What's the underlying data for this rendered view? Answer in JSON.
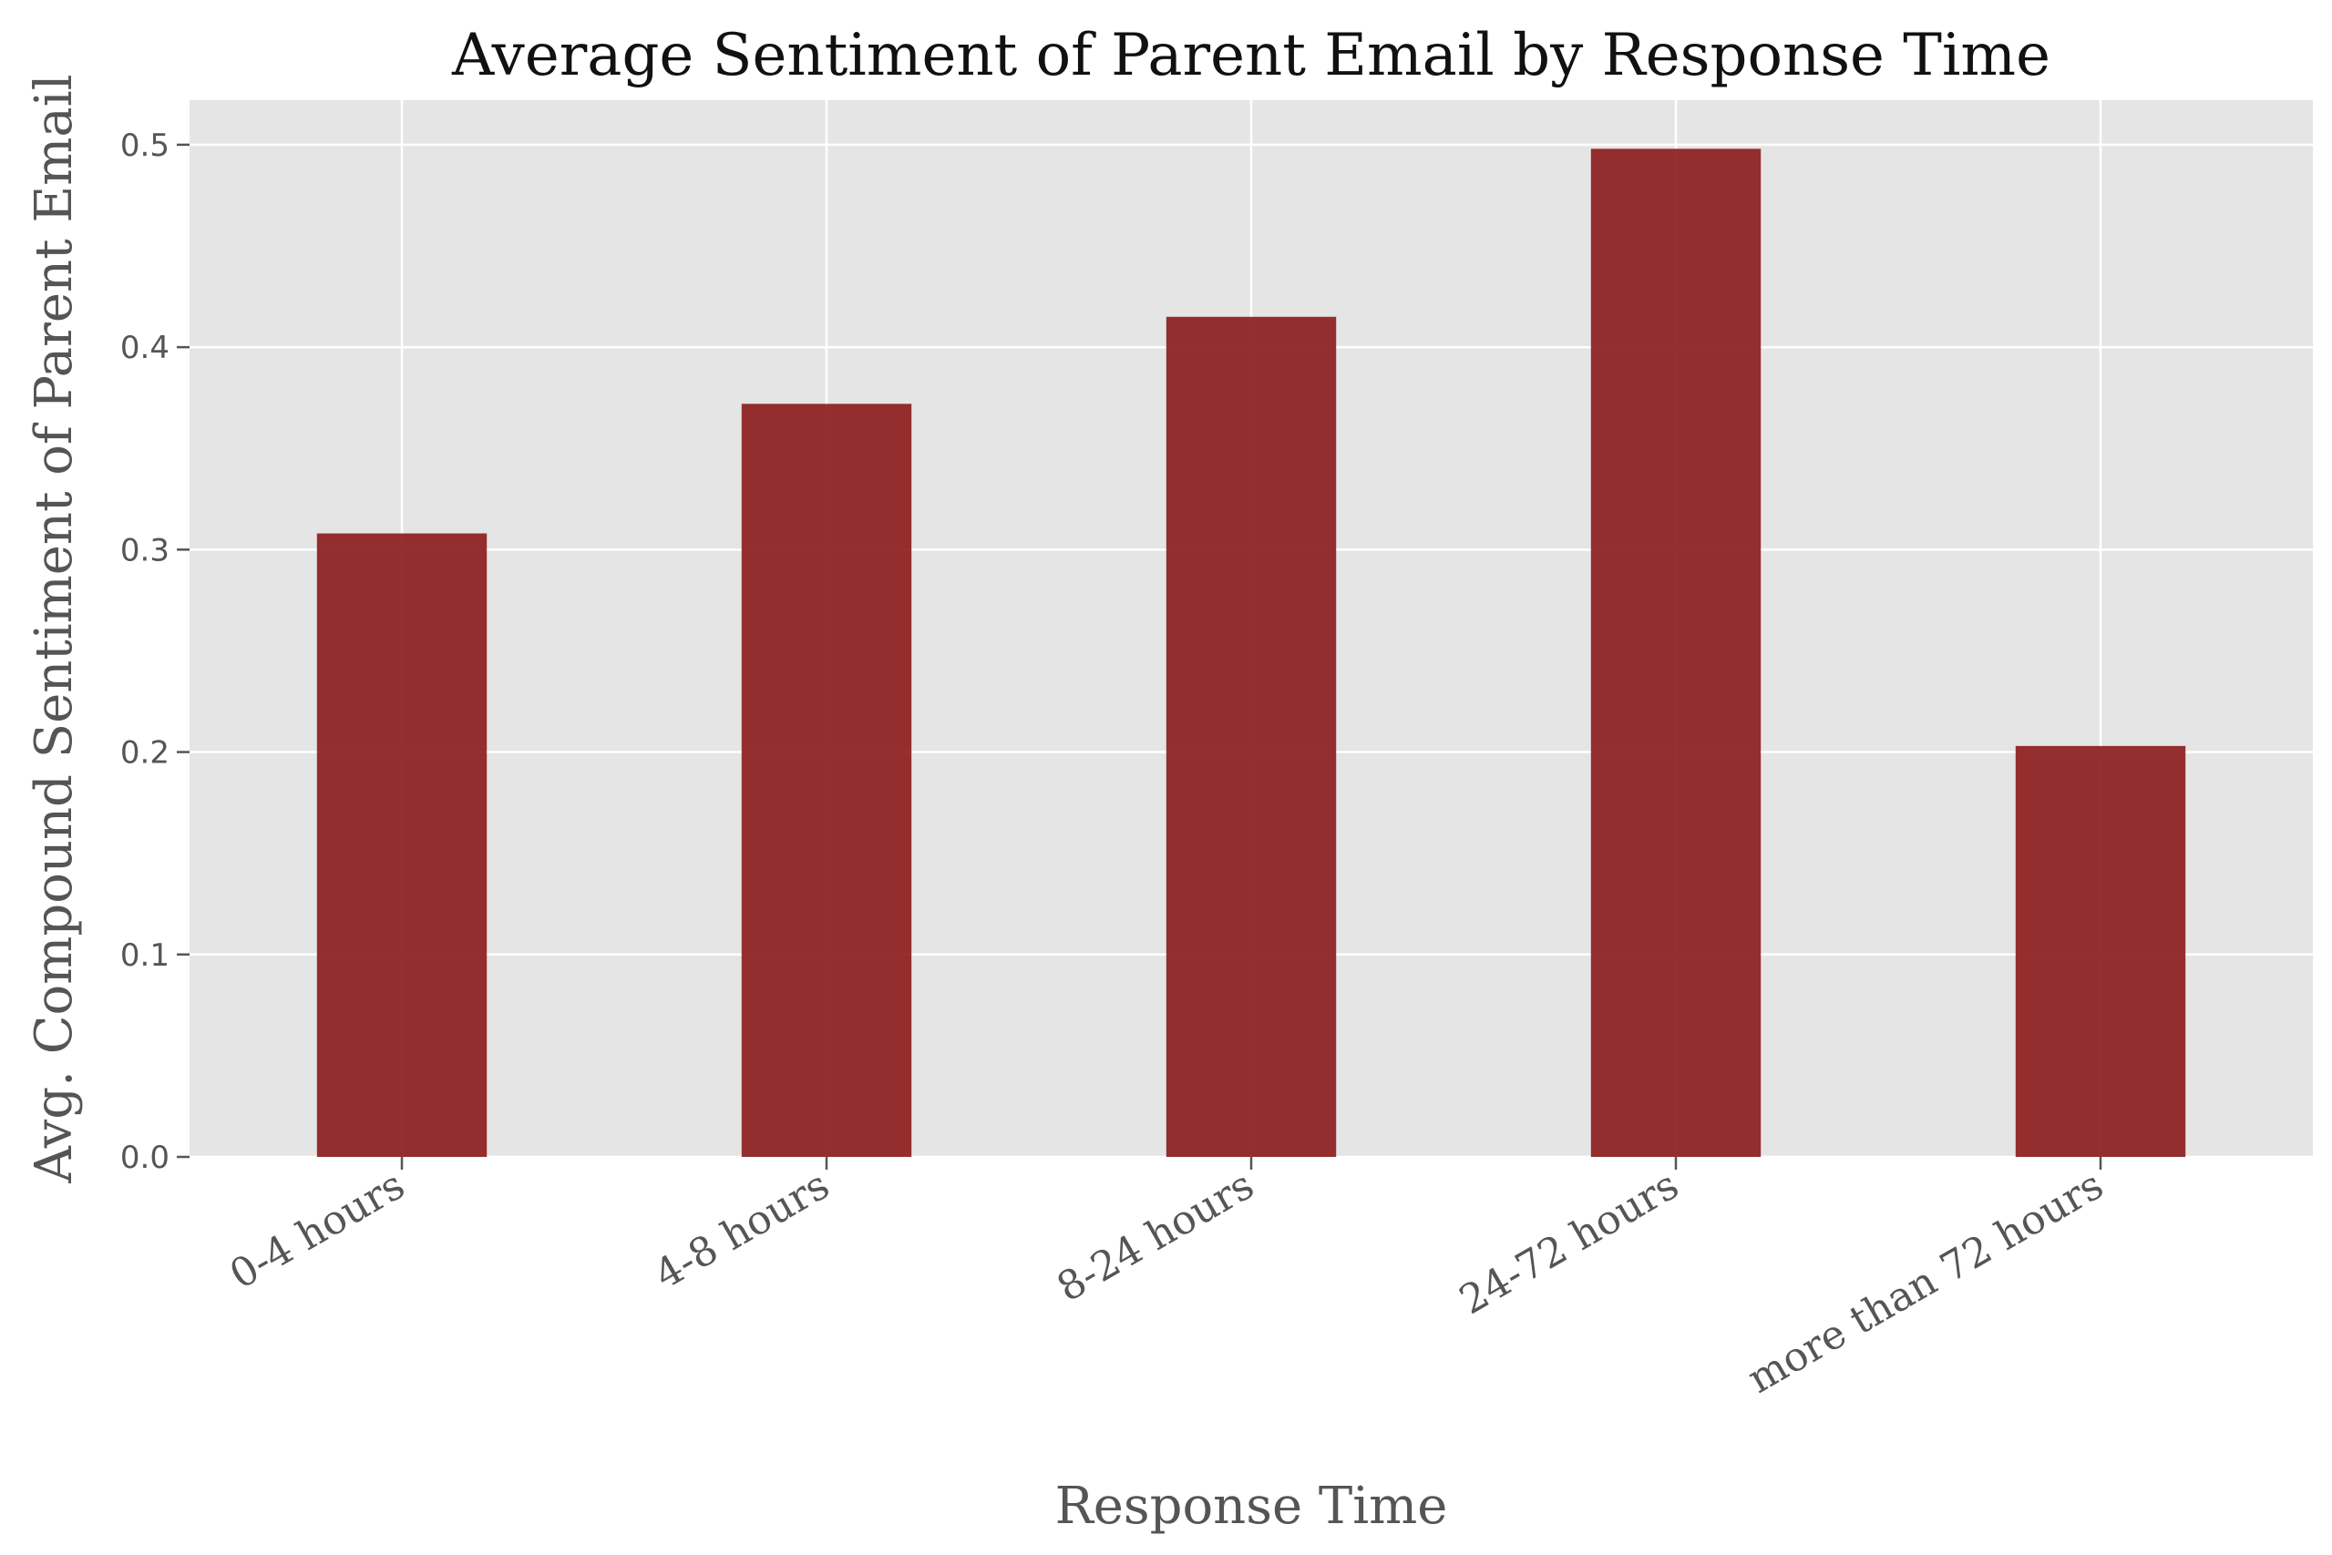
{
  "chart_data": {
    "type": "bar",
    "title": "Average Sentiment of Parent Email by Response Time",
    "xlabel": "Response Time",
    "ylabel": "Avg. Compound Sentiment of Parent Email",
    "categories": [
      "0-4 hours",
      "4-8 hours",
      "8-24 hours",
      "24-72 hours",
      "more than 72 hours"
    ],
    "values": [
      0.308,
      0.372,
      0.415,
      0.498,
      0.203
    ],
    "ylim": [
      0,
      0.522
    ],
    "yticks": [
      "0.0",
      "0.1",
      "0.2",
      "0.3",
      "0.4",
      "0.5"
    ],
    "grid": true,
    "bar_color": "#8b1a1a",
    "plot_background": "#e5e5e5",
    "grid_color": "#ffffff"
  }
}
